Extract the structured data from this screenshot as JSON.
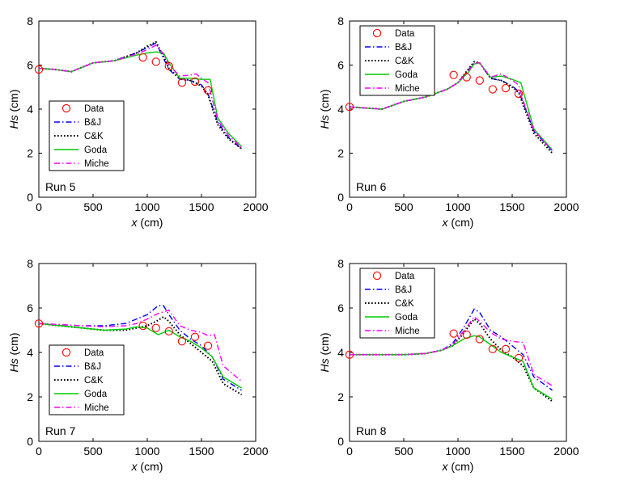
{
  "chart_data": [
    {
      "type": "line",
      "panel_label": "Run 5",
      "xlabel": {
        "var": "x",
        "unit": " (cm)"
      },
      "ylabel": {
        "var": "Hs",
        "unit": " (cm)"
      },
      "xlim": [
        0,
        2000
      ],
      "ylim": [
        0,
        8
      ],
      "xticks": [
        0,
        500,
        1000,
        1500,
        2000
      ],
      "yticks": [
        0,
        2,
        4,
        6,
        8
      ],
      "legend_position": "lower-left",
      "data_points": {
        "name": "Data",
        "x": [
          0,
          960,
          1080,
          1200,
          1320,
          1440,
          1560
        ],
        "y": [
          5.8,
          6.35,
          6.15,
          5.95,
          5.2,
          5.25,
          4.85
        ]
      },
      "series": [
        {
          "name": "B&J",
          "x": [
            0,
            150,
            300,
            500,
            700,
            900,
            1000,
            1080,
            1150,
            1200,
            1300,
            1400,
            1500,
            1560,
            1650,
            1750,
            1870
          ],
          "y": [
            5.85,
            5.8,
            5.7,
            6.1,
            6.2,
            6.55,
            6.8,
            7.0,
            6.3,
            5.8,
            5.35,
            5.3,
            5.1,
            4.7,
            3.4,
            2.7,
            2.2
          ]
        },
        {
          "name": "C&K",
          "x": [
            0,
            150,
            300,
            500,
            700,
            900,
            1000,
            1080,
            1150,
            1200,
            1300,
            1400,
            1500,
            1560,
            1650,
            1750,
            1870
          ],
          "y": [
            5.85,
            5.8,
            5.7,
            6.1,
            6.2,
            6.55,
            6.85,
            7.05,
            6.4,
            5.85,
            5.4,
            5.3,
            5.05,
            4.65,
            3.3,
            2.65,
            2.2
          ]
        },
        {
          "name": "Goda",
          "x": [
            0,
            150,
            300,
            500,
            700,
            900,
            1000,
            1080,
            1150,
            1200,
            1300,
            1400,
            1500,
            1580,
            1650,
            1750,
            1870
          ],
          "y": [
            5.85,
            5.8,
            5.7,
            6.1,
            6.2,
            6.45,
            6.55,
            6.6,
            6.55,
            6.1,
            5.4,
            5.4,
            5.35,
            5.35,
            3.6,
            2.9,
            2.3
          ]
        },
        {
          "name": "Miche",
          "x": [
            0,
            150,
            300,
            500,
            700,
            900,
            1000,
            1080,
            1150,
            1200,
            1300,
            1400,
            1450,
            1500,
            1560,
            1650,
            1750,
            1870
          ],
          "y": [
            5.85,
            5.8,
            5.7,
            6.1,
            6.2,
            6.5,
            6.7,
            6.9,
            6.5,
            6.0,
            5.5,
            5.55,
            5.6,
            5.4,
            5.2,
            3.5,
            2.8,
            2.25
          ]
        }
      ]
    },
    {
      "type": "line",
      "panel_label": "Run 6",
      "xlabel": {
        "var": "x",
        "unit": " (cm)"
      },
      "ylabel": {
        "var": "Hs",
        "unit": " (cm)"
      },
      "xlim": [
        0,
        2000
      ],
      "ylim": [
        0,
        8
      ],
      "xticks": [
        0,
        500,
        1000,
        1500,
        2000
      ],
      "yticks": [
        0,
        2,
        4,
        6,
        8
      ],
      "legend_position": "upper-left",
      "data_points": {
        "name": "Data",
        "x": [
          0,
          960,
          1080,
          1200,
          1320,
          1440,
          1560
        ],
        "y": [
          4.1,
          5.55,
          5.45,
          5.3,
          4.9,
          4.95,
          4.7
        ]
      },
      "series": [
        {
          "name": "B&J",
          "x": [
            0,
            150,
            300,
            500,
            700,
            900,
            1000,
            1100,
            1150,
            1200,
            1300,
            1400,
            1500,
            1560,
            1600,
            1700,
            1870
          ],
          "y": [
            4.1,
            4.05,
            4.0,
            4.35,
            4.55,
            4.9,
            5.2,
            5.8,
            6.1,
            6.1,
            5.4,
            5.3,
            5.05,
            4.8,
            4.3,
            3.0,
            2.1
          ]
        },
        {
          "name": "C&K",
          "x": [
            0,
            150,
            300,
            500,
            700,
            900,
            1000,
            1100,
            1150,
            1200,
            1300,
            1400,
            1500,
            1560,
            1600,
            1700,
            1870
          ],
          "y": [
            4.1,
            4.05,
            4.0,
            4.35,
            4.55,
            4.9,
            5.2,
            5.85,
            6.15,
            6.1,
            5.4,
            5.3,
            5.0,
            4.75,
            4.2,
            2.9,
            2.0
          ]
        },
        {
          "name": "Goda",
          "x": [
            0,
            150,
            300,
            500,
            700,
            900,
            1000,
            1100,
            1150,
            1200,
            1300,
            1400,
            1500,
            1580,
            1620,
            1700,
            1870
          ],
          "y": [
            4.1,
            4.05,
            4.0,
            4.35,
            4.55,
            4.9,
            5.2,
            5.7,
            6.05,
            6.1,
            5.45,
            5.5,
            5.35,
            5.2,
            4.5,
            3.1,
            2.15
          ]
        },
        {
          "name": "Miche",
          "x": [
            0,
            150,
            300,
            500,
            700,
            900,
            1000,
            1100,
            1150,
            1200,
            1300,
            1400,
            1500,
            1560,
            1600,
            1700,
            1870
          ],
          "y": [
            4.1,
            4.05,
            4.0,
            4.35,
            4.55,
            4.9,
            5.2,
            5.75,
            6.1,
            6.1,
            5.45,
            5.6,
            5.3,
            5.1,
            4.4,
            3.05,
            2.1
          ]
        }
      ]
    },
    {
      "type": "line",
      "panel_label": "Run 7",
      "xlabel": {
        "var": "x",
        "unit": " (cm)"
      },
      "ylabel": {
        "var": "Hs",
        "unit": " (cm)"
      },
      "xlim": [
        0,
        2000
      ],
      "ylim": [
        0,
        8
      ],
      "xticks": [
        0,
        500,
        1000,
        1500,
        2000
      ],
      "yticks": [
        0,
        2,
        4,
        6,
        8
      ],
      "legend_position": "lower-left",
      "data_points": {
        "name": "Data",
        "x": [
          0,
          960,
          1080,
          1200,
          1320,
          1440,
          1560
        ],
        "y": [
          5.3,
          5.2,
          5.1,
          4.95,
          4.5,
          4.7,
          4.3
        ]
      },
      "series": [
        {
          "name": "B&J",
          "x": [
            0,
            200,
            400,
            600,
            800,
            900,
            1000,
            1100,
            1150,
            1200,
            1300,
            1400,
            1500,
            1600,
            1700,
            1870
          ],
          "y": [
            5.3,
            5.25,
            5.2,
            5.2,
            5.3,
            5.5,
            5.7,
            6.1,
            6.1,
            5.7,
            5.0,
            4.6,
            4.3,
            3.8,
            2.8,
            2.3
          ]
        },
        {
          "name": "C&K",
          "x": [
            0,
            200,
            400,
            600,
            800,
            900,
            1000,
            1100,
            1150,
            1200,
            1300,
            1400,
            1500,
            1600,
            1700,
            1870
          ],
          "y": [
            5.3,
            5.2,
            5.1,
            5.0,
            5.0,
            5.1,
            5.2,
            5.45,
            5.6,
            5.4,
            4.8,
            4.4,
            4.0,
            3.6,
            2.6,
            2.1
          ]
        },
        {
          "name": "Goda",
          "x": [
            0,
            200,
            400,
            600,
            800,
            900,
            1000,
            1100,
            1200,
            1300,
            1400,
            1500,
            1600,
            1700,
            1870
          ],
          "y": [
            5.3,
            5.2,
            5.1,
            5.0,
            5.05,
            5.15,
            5.1,
            4.8,
            5.0,
            4.7,
            4.5,
            4.2,
            3.8,
            2.9,
            2.4
          ]
        },
        {
          "name": "Miche",
          "x": [
            0,
            200,
            400,
            600,
            800,
            900,
            1000,
            1100,
            1200,
            1300,
            1400,
            1500,
            1560,
            1620,
            1700,
            1870
          ],
          "y": [
            5.3,
            5.25,
            5.2,
            5.15,
            5.2,
            5.3,
            5.5,
            5.75,
            5.9,
            5.2,
            5.0,
            4.9,
            4.75,
            4.8,
            3.4,
            2.7
          ]
        }
      ]
    },
    {
      "type": "line",
      "panel_label": "Run 8",
      "xlabel": {
        "var": "x",
        "unit": " (cm)"
      },
      "ylabel": {
        "var": "Hs",
        "unit": " (cm)"
      },
      "xlim": [
        0,
        2000
      ],
      "ylim": [
        0,
        8
      ],
      "xticks": [
        0,
        500,
        1000,
        1500,
        2000
      ],
      "yticks": [
        0,
        2,
        4,
        6,
        8
      ],
      "legend_position": "upper-left",
      "data_points": {
        "name": "Data",
        "x": [
          0,
          960,
          1080,
          1200,
          1320,
          1440,
          1560
        ],
        "y": [
          3.9,
          4.85,
          4.8,
          4.6,
          4.15,
          4.15,
          3.75
        ]
      },
      "series": [
        {
          "name": "B&J",
          "x": [
            0,
            200,
            500,
            700,
            850,
            950,
            1050,
            1150,
            1200,
            1300,
            1400,
            1500,
            1600,
            1700,
            1870
          ],
          "y": [
            3.9,
            3.9,
            3.9,
            3.95,
            4.1,
            4.4,
            5.1,
            5.95,
            5.8,
            5.0,
            4.7,
            4.3,
            3.9,
            2.9,
            2.3
          ]
        },
        {
          "name": "C&K",
          "x": [
            0,
            200,
            500,
            700,
            850,
            950,
            1050,
            1150,
            1200,
            1300,
            1400,
            1500,
            1600,
            1700,
            1870
          ],
          "y": [
            3.9,
            3.9,
            3.9,
            3.95,
            4.1,
            4.3,
            4.85,
            5.5,
            5.3,
            4.6,
            4.1,
            3.8,
            3.4,
            2.4,
            1.8
          ]
        },
        {
          "name": "Goda",
          "x": [
            0,
            200,
            500,
            700,
            850,
            950,
            1050,
            1150,
            1200,
            1300,
            1400,
            1500,
            1600,
            1700,
            1870
          ],
          "y": [
            3.9,
            3.9,
            3.9,
            3.95,
            4.1,
            4.3,
            4.6,
            4.75,
            4.7,
            4.35,
            4.0,
            3.8,
            3.6,
            2.4,
            1.9
          ]
        },
        {
          "name": "Miche",
          "x": [
            0,
            200,
            500,
            700,
            850,
            950,
            1050,
            1150,
            1200,
            1300,
            1400,
            1500,
            1600,
            1700,
            1870
          ],
          "y": [
            3.9,
            3.9,
            3.9,
            3.95,
            4.1,
            4.35,
            4.95,
            5.6,
            5.4,
            4.9,
            4.6,
            4.5,
            4.45,
            3.0,
            2.5
          ]
        }
      ]
    }
  ],
  "styles": {
    "data_marker_color": "#ff0000",
    "series_colors": {
      "B&J": "#0000ff",
      "C&K": "#000000",
      "Goda": "#00cc00",
      "Miche": "#ff00ff"
    },
    "series_dash": {
      "B&J": "dashdot",
      "C&K": "dotted",
      "Goda": "solid",
      "Miche": "dashdot"
    },
    "frame_color": "#000000",
    "background": "#ffffff"
  }
}
